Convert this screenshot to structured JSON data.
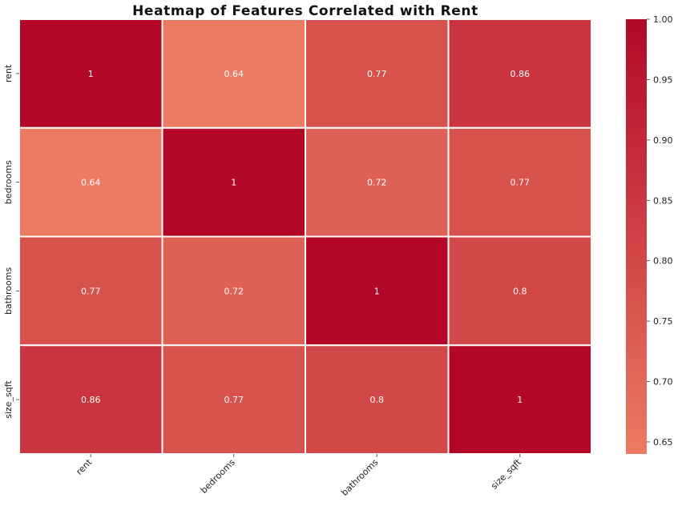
{
  "chart_data": {
    "type": "heatmap",
    "title": "Heatmap of Features Correlated with Rent",
    "row_labels": [
      "rent",
      "bedrooms",
      "bathrooms",
      "size_sqft"
    ],
    "col_labels": [
      "rent",
      "bedrooms",
      "bathrooms",
      "size_sqft"
    ],
    "values": [
      [
        1,
        0.64,
        0.77,
        0.86
      ],
      [
        0.64,
        1,
        0.72,
        0.77
      ],
      [
        0.77,
        0.72,
        1,
        0.8
      ],
      [
        0.86,
        0.77,
        0.8,
        1
      ]
    ],
    "value_labels": [
      [
        "1",
        "0.64",
        "0.77",
        "0.86"
      ],
      [
        "0.64",
        "1",
        "0.72",
        "0.77"
      ],
      [
        "0.77",
        "0.72",
        "1",
        "0.8"
      ],
      [
        "0.86",
        "0.77",
        "0.8",
        "1"
      ]
    ],
    "colorbar": {
      "min": 0.64,
      "max": 1.0,
      "ticks": [
        "0.65",
        "0.70",
        "0.75",
        "0.80",
        "0.85",
        "0.90",
        "0.95",
        "1.00"
      ],
      "colors": [
        "#ec7b63",
        "#b20727"
      ]
    },
    "grid_color": "#ffffff"
  }
}
